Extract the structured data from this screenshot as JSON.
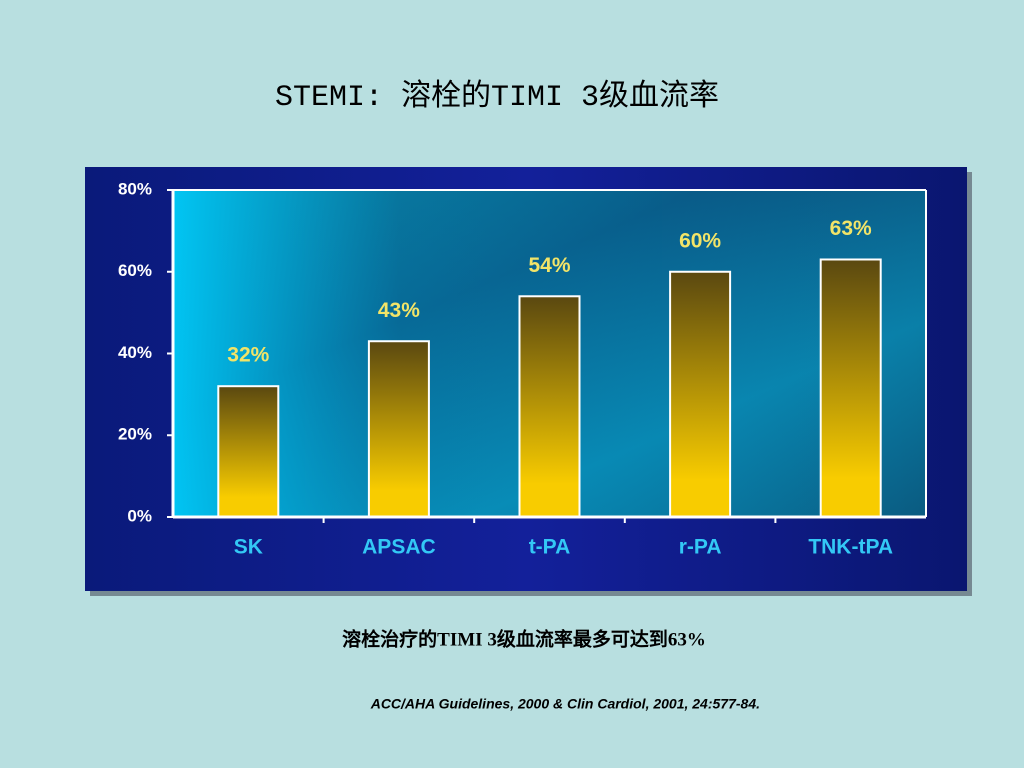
{
  "chart_data": {
    "type": "bar",
    "title": "STEMI: 溶栓的TIMI 3级血流率",
    "categories": [
      "SK",
      "APSAC",
      "t-PA",
      "r-PA",
      "TNK-tPA"
    ],
    "values": [
      32,
      43,
      54,
      60,
      63
    ],
    "value_labels": [
      "32%",
      "43%",
      "54%",
      "60%",
      "63%"
    ],
    "color": "#f8cc00",
    "ylim": [
      0,
      80
    ],
    "yticks": [
      {
        "value": 0,
        "label": "0%"
      },
      {
        "value": 20,
        "label": "20%"
      },
      {
        "value": 40,
        "label": "40%"
      },
      {
        "value": 60,
        "label": "60%"
      },
      {
        "value": 80,
        "label": "80%"
      }
    ],
    "grid": false,
    "annotations": [
      "溶栓治疗的TIMI 3级血流率最多可达到63%",
      "ACC/AHA Guidelines, 2000 & Clin Cardiol, 2001, 24:577-84."
    ]
  }
}
